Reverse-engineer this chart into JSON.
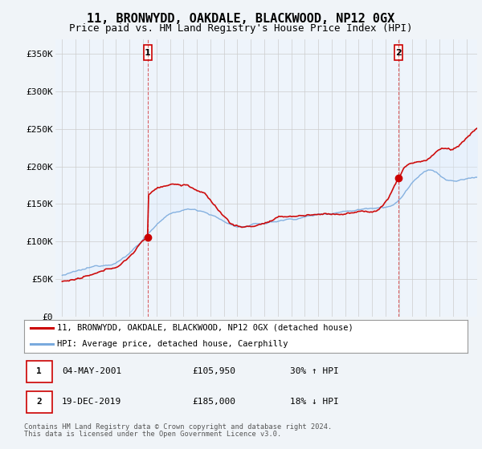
{
  "title": "11, BRONWYDD, OAKDALE, BLACKWOOD, NP12 0GX",
  "subtitle": "Price paid vs. HM Land Registry's House Price Index (HPI)",
  "ylabel_ticks": [
    "£0",
    "£50K",
    "£100K",
    "£150K",
    "£200K",
    "£250K",
    "£300K",
    "£350K"
  ],
  "ytick_vals": [
    0,
    50000,
    100000,
    150000,
    200000,
    250000,
    300000,
    350000
  ],
  "ylim": [
    0,
    370000
  ],
  "xlim_start": 1994.5,
  "xlim_end": 2025.8,
  "red_line_color": "#cc0000",
  "blue_line_color": "#7aaadd",
  "fill_color": "#ddeeff",
  "marker1_year": 2001.35,
  "marker1_value": 105950,
  "marker2_year": 2019.96,
  "marker2_value": 185000,
  "legend_red_label": "11, BRONWYDD, OAKDALE, BLACKWOOD, NP12 0GX (detached house)",
  "legend_blue_label": "HPI: Average price, detached house, Caerphilly",
  "table_row1": [
    "1",
    "04-MAY-2001",
    "£105,950",
    "30% ↑ HPI"
  ],
  "table_row2": [
    "2",
    "19-DEC-2019",
    "£185,000",
    "18% ↓ HPI"
  ],
  "footnote1": "Contains HM Land Registry data © Crown copyright and database right 2024.",
  "footnote2": "This data is licensed under the Open Government Licence v3.0.",
  "background_color": "#f0f4f8",
  "plot_background": "#eef4fb",
  "grid_color": "#cccccc",
  "title_fontsize": 11,
  "subtitle_fontsize": 9
}
